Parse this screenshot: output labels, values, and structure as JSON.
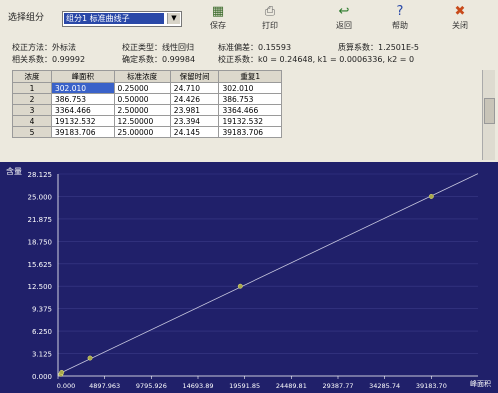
{
  "toolbar": {
    "select_label": "选择组分",
    "select_value": "组分1 标准曲线子",
    "buttons": [
      {
        "label": "保存",
        "icon": "save-icon"
      },
      {
        "label": "打印",
        "icon": "printer-icon"
      },
      {
        "label": "返回",
        "icon": "back-arrow-icon"
      },
      {
        "label": "帮助",
        "icon": "help-icon"
      },
      {
        "label": "关闭",
        "icon": "close-icon"
      }
    ]
  },
  "info": {
    "method": "校正方法：外标法",
    "type": "校正类型：线性回归",
    "std_dev": "标准偏差：0.15593",
    "response": "质算系数：1.2501E-5",
    "corr": "相关系数：0.99992",
    "det": "确定系数：0.99984",
    "coef": "校正系数：k0 = 0.24648,  k1 = 0.0006336,  k2 = 0"
  },
  "table": {
    "headers": [
      "浓度",
      "峰面积",
      "标准浓度",
      "保留时间",
      "重复1"
    ],
    "rows": [
      [
        "1",
        "302.010",
        "0.25000",
        "24.710",
        "302.010"
      ],
      [
        "2",
        "386.753",
        "0.50000",
        "24.426",
        "386.753"
      ],
      [
        "3",
        "3364.466",
        "2.50000",
        "23.981",
        "3364.466"
      ],
      [
        "4",
        "19132.532",
        "12.50000",
        "23.394",
        "19132.532"
      ],
      [
        "5",
        "39183.706",
        "25.00000",
        "24.145",
        "39183.706"
      ]
    ]
  },
  "chart_data": {
    "type": "scatter",
    "ylabel": "含量",
    "xlabel": "峰面积",
    "x": [
      302.01,
      386.753,
      3364.466,
      19132.532,
      39183.706
    ],
    "y": [
      0.25,
      0.5,
      2.5,
      12.5,
      25.0
    ],
    "fit_line": {
      "k0": 0.24648,
      "k1": 0.0006336
    },
    "xlim": [
      0,
      44082.67
    ],
    "ylim": [
      0,
      28.125
    ],
    "x_ticks": [
      "0.000",
      "4897.963",
      "9795.926",
      "14693.89",
      "19591.85",
      "24489.81",
      "29387.77",
      "34285.74",
      "39183.70"
    ],
    "y_ticks": [
      "0.000",
      "3.125",
      "6.250",
      "9.375",
      "12.500",
      "15.625",
      "18.750",
      "21.875",
      "25.000",
      "28.125"
    ],
    "colors": {
      "background": "#20206a",
      "line": "#c8c8e0",
      "point": "#a8a84a",
      "grid": "#3a3a88"
    }
  }
}
